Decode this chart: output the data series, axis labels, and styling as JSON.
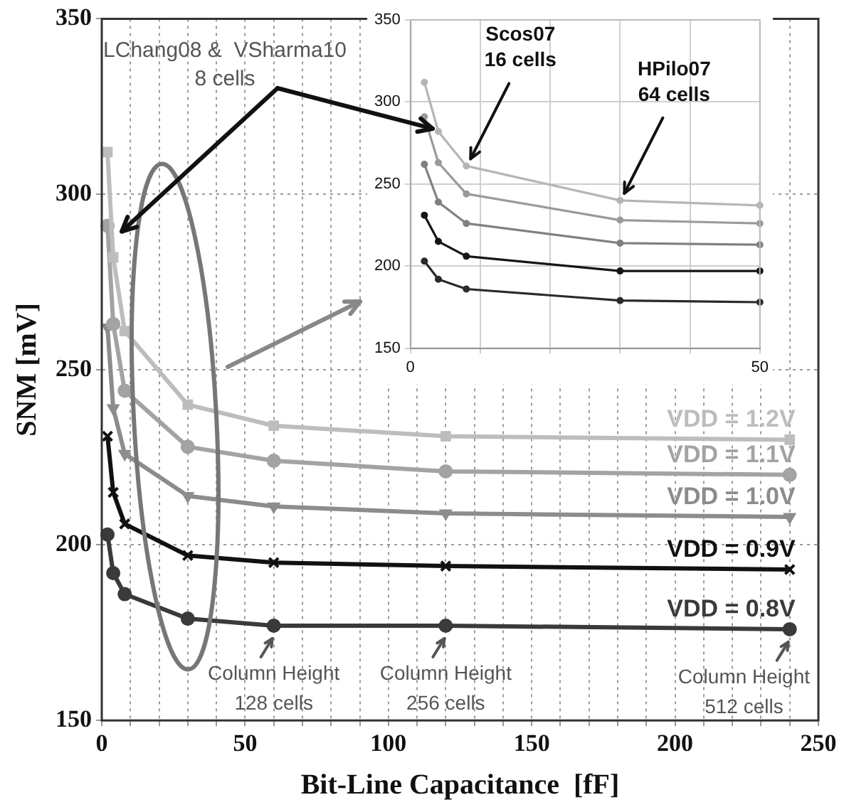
{
  "chart_data": [
    {
      "type": "line",
      "xlabel": "Bit-Line Capacitance  [fF]",
      "ylabel": "SNM [mV]",
      "x": [
        2,
        4,
        8,
        30,
        60,
        120,
        240
      ],
      "series": [
        {
          "name": "VDD = 1.2V",
          "color": "#bdbdbd",
          "marker": "square",
          "values": [
            312,
            282,
            261,
            240,
            234,
            231,
            230
          ]
        },
        {
          "name": "VDD = 1.1V",
          "color": "#a3a3a3",
          "marker": "circle",
          "values": [
            291,
            263,
            244,
            228,
            224,
            221,
            220
          ]
        },
        {
          "name": "VDD = 1.0V",
          "color": "#8c8c8c",
          "marker": "triangle",
          "values": [
            262,
            239,
            226,
            214,
            211,
            209,
            208
          ]
        },
        {
          "name": "VDD = 0.9V",
          "color": "#111111",
          "marker": "cross",
          "values": [
            231,
            215,
            206,
            197,
            195,
            194,
            193
          ]
        },
        {
          "name": "VDD = 0.8V",
          "color": "#3a3a3a",
          "marker": "circle",
          "values": [
            203,
            192,
            186,
            179,
            177,
            177,
            176
          ]
        }
      ],
      "xlim": [
        0,
        250
      ],
      "ylim": [
        150,
        350
      ],
      "xticks": [
        0,
        {
          "value": 10,
          "label": null
        },
        {
          "value": 20,
          "label": null
        },
        {
          "value": 30,
          "label": null
        },
        {
          "value": 40,
          "label": null
        },
        50,
        {
          "value": 60,
          "label": null
        },
        {
          "value": 70,
          "label": null
        },
        {
          "value": 80,
          "label": null
        },
        {
          "value": 90,
          "label": null
        },
        100,
        {
          "value": 110,
          "label": null
        },
        {
          "value": 120,
          "label": null
        },
        {
          "value": 130,
          "label": null
        },
        {
          "value": 140,
          "label": null
        },
        150,
        {
          "value": 160,
          "label": null
        },
        {
          "value": 170,
          "label": null
        },
        {
          "value": 180,
          "label": null
        },
        {
          "value": 190,
          "label": null
        },
        200,
        {
          "value": 210,
          "label": null
        },
        {
          "value": 220,
          "label": null
        },
        {
          "value": 230,
          "label": null
        },
        {
          "value": 240,
          "label": null
        },
        250
      ],
      "yticks": [
        150,
        200,
        250,
        300,
        350
      ],
      "grid": true,
      "annotations": [
        "LChang08 &  VSharma10\n8 cells",
        {
          "text": "Column Height\n128 cells",
          "x": 60,
          "y": 177
        },
        {
          "text": "Column Height\n256 cells",
          "x": 120,
          "y": 177
        },
        {
          "text": "Column Height\n512 cells",
          "x": 240,
          "y": 176
        }
      ]
    },
    {
      "type": "line",
      "x": [
        2,
        4,
        8,
        30,
        50
      ],
      "marker": "circle",
      "series": [
        {
          "color": "#b5b5b5",
          "values": [
            312,
            282,
            261,
            240,
            237
          ]
        },
        {
          "color": "#9a9a9a",
          "values": [
            291,
            263,
            244,
            228,
            226
          ]
        },
        {
          "color": "#808080",
          "values": [
            262,
            239,
            226,
            214,
            213
          ]
        },
        {
          "color": "#151515",
          "values": [
            231,
            215,
            206,
            197,
            197
          ]
        },
        {
          "color": "#2a2a2a",
          "values": [
            203,
            192,
            186,
            179,
            178
          ]
        }
      ],
      "xlim": [
        0,
        50
      ],
      "ylim": [
        150,
        350
      ],
      "xticks": [
        0,
        {
          "value": 10,
          "label": null
        },
        {
          "value": 20,
          "label": null
        },
        {
          "value": 30,
          "label": null
        },
        {
          "value": 40,
          "label": null
        },
        50
      ],
      "yticks": [
        150,
        200,
        250,
        300,
        350
      ],
      "grid": true,
      "annotations": [
        {
          "text": "Scos07\n16 cells",
          "x": 8,
          "y": 261
        },
        {
          "text": "HPilo07\n64 cells",
          "x": 30,
          "y": 240
        }
      ]
    }
  ]
}
